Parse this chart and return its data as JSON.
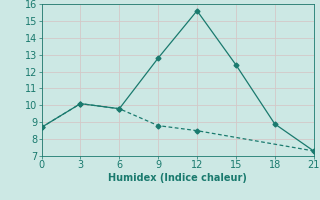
{
  "xlabel": "Humidex (Indice chaleur)",
  "line1_x": [
    0,
    3,
    6,
    9,
    12,
    15,
    18,
    21
  ],
  "line1_y": [
    8.7,
    10.1,
    9.8,
    12.8,
    15.6,
    12.4,
    8.9,
    7.3
  ],
  "line2_x": [
    0,
    3,
    6,
    9,
    12,
    21
  ],
  "line2_y": [
    8.7,
    10.1,
    9.8,
    8.8,
    8.5,
    7.3
  ],
  "line_color": "#1a7a6e",
  "bg_color": "#cce8e4",
  "grid_color": "#b0d4cf",
  "xlim": [
    0,
    21
  ],
  "ylim": [
    7,
    16
  ],
  "xticks": [
    0,
    3,
    6,
    9,
    12,
    15,
    18,
    21
  ],
  "yticks": [
    7,
    8,
    9,
    10,
    11,
    12,
    13,
    14,
    15,
    16
  ],
  "fontsize": 7,
  "marker": "D",
  "markersize": 2.5
}
